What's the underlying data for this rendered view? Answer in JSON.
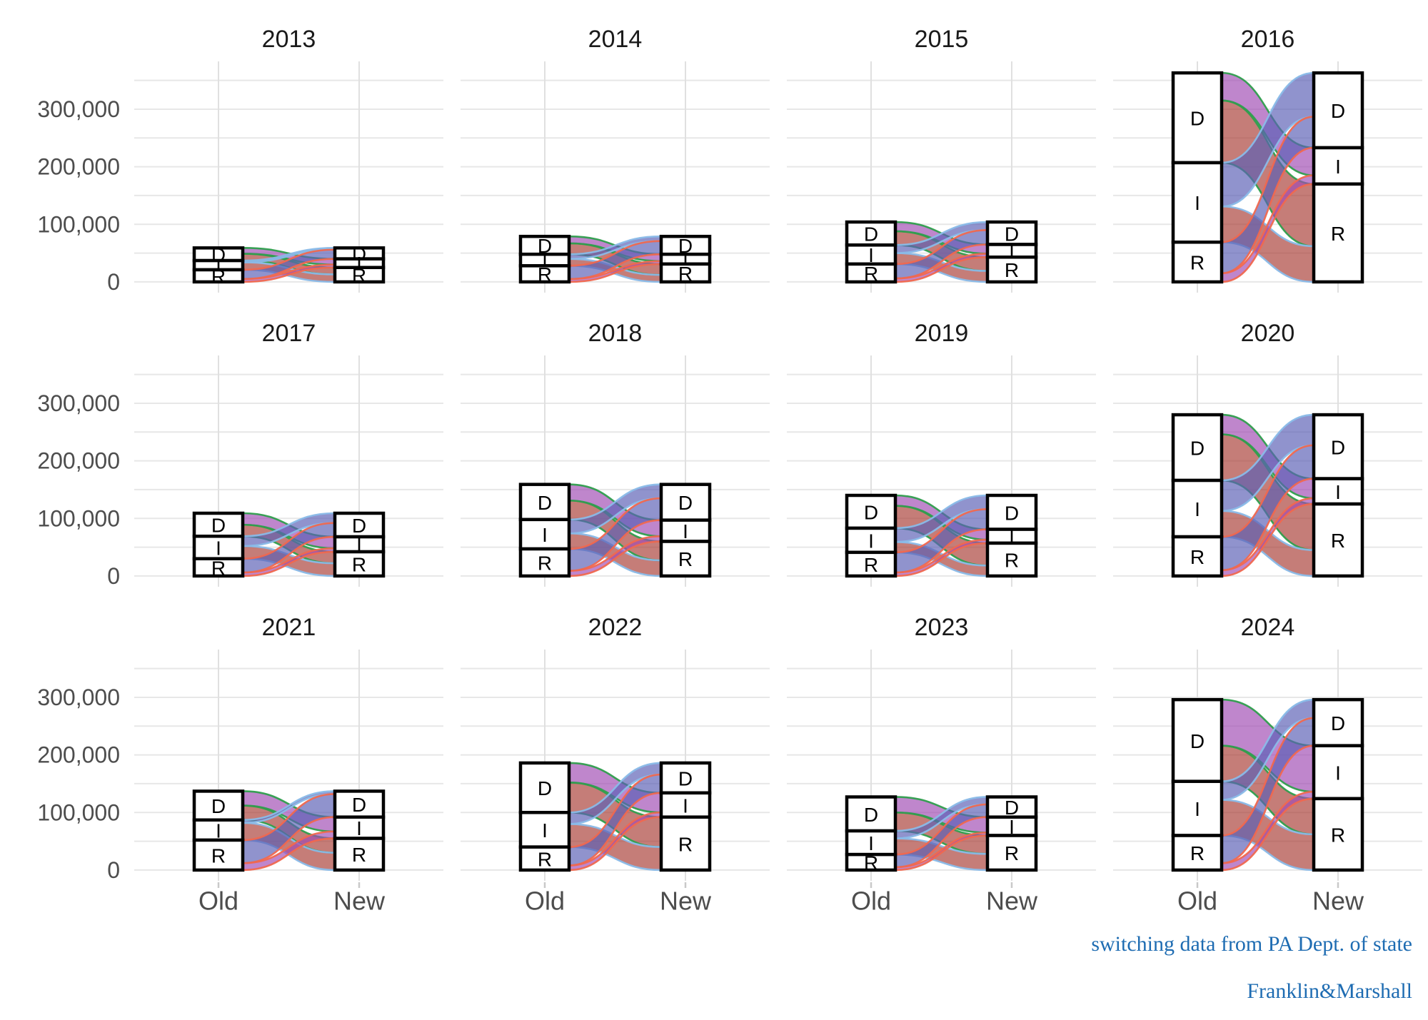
{
  "figure": {
    "caption_line1": "switching data from PA Dept. of state",
    "caption_line2": "Franklin&Marshall",
    "caption_color": "#1e6cb2",
    "background": "#ffffff"
  },
  "axes": {
    "y_tick_values": [
      0,
      100000,
      200000,
      300000
    ],
    "y_tick_labels": [
      "0",
      "100,000",
      "200,000",
      "300,000"
    ],
    "y_minor_step": 50000,
    "y_max_grid": 350000,
    "x_labels": [
      "Old",
      "New"
    ],
    "grid": "on",
    "legend": "none"
  },
  "strata": [
    "D",
    "I",
    "R"
  ],
  "palette": {
    "fill_by_new_party": {
      "D": "#5c60b6",
      "I": "#a14cb4",
      "R": "#a93f38"
    },
    "stroke_by_old_party": {
      "D": "#2f9e4d",
      "I": "#8abbe8",
      "R": "#f0684f"
    },
    "bar_fill": "#ffffff",
    "bar_stroke": "#000000",
    "grid_color": "#e7e7e7",
    "grid_color_vertical": "#e0e0e0",
    "tick_color": "#c9c9c9",
    "label_gray": "#4d4d4d",
    "title_color": "#1a1a1a"
  },
  "chart_data": {
    "type": "alluvial",
    "title": "",
    "xlabel": "",
    "ylabel": "",
    "ylim": [
      -18700,
      383000
    ],
    "facet_years": [
      "2013",
      "2014",
      "2015",
      "2016",
      "2017",
      "2018",
      "2019",
      "2020",
      "2021",
      "2022",
      "2023",
      "2024"
    ],
    "facets": [
      {
        "year": "2013",
        "old_totals": {
          "D": 22000,
          "I": 16000,
          "R": 21000
        },
        "new_totals": {
          "D": 19000,
          "I": 15000,
          "R": 25000
        },
        "flows": [
          {
            "from": "D",
            "to": "I",
            "value": 10000
          },
          {
            "from": "D",
            "to": "R",
            "value": 12000
          },
          {
            "from": "I",
            "to": "D",
            "value": 3000
          },
          {
            "from": "I",
            "to": "R",
            "value": 13000
          },
          {
            "from": "R",
            "to": "D",
            "value": 16000
          },
          {
            "from": "R",
            "to": "I",
            "value": 5000
          }
        ]
      },
      {
        "year": "2014",
        "old_totals": {
          "D": 31000,
          "I": 20000,
          "R": 28000
        },
        "new_totals": {
          "D": 31000,
          "I": 17000,
          "R": 31000
        },
        "flows": [
          {
            "from": "D",
            "to": "I",
            "value": 12000
          },
          {
            "from": "D",
            "to": "R",
            "value": 19000
          },
          {
            "from": "I",
            "to": "D",
            "value": 8000
          },
          {
            "from": "I",
            "to": "R",
            "value": 12000
          },
          {
            "from": "R",
            "to": "D",
            "value": 23000
          },
          {
            "from": "R",
            "to": "I",
            "value": 5000
          }
        ]
      },
      {
        "year": "2015",
        "old_totals": {
          "D": 40000,
          "I": 33000,
          "R": 31000
        },
        "new_totals": {
          "D": 39000,
          "I": 22000,
          "R": 43000
        },
        "flows": [
          {
            "from": "D",
            "to": "I",
            "value": 16000
          },
          {
            "from": "D",
            "to": "R",
            "value": 24000
          },
          {
            "from": "I",
            "to": "D",
            "value": 14000
          },
          {
            "from": "I",
            "to": "R",
            "value": 19000
          },
          {
            "from": "R",
            "to": "D",
            "value": 25000
          },
          {
            "from": "R",
            "to": "I",
            "value": 6000
          }
        ]
      },
      {
        "year": "2016",
        "old_totals": {
          "D": 156000,
          "I": 138000,
          "R": 69000
        },
        "new_totals": {
          "D": 130000,
          "I": 63000,
          "R": 170000
        },
        "flows": [
          {
            "from": "D",
            "to": "I",
            "value": 48000
          },
          {
            "from": "D",
            "to": "R",
            "value": 108000
          },
          {
            "from": "I",
            "to": "D",
            "value": 76000
          },
          {
            "from": "I",
            "to": "R",
            "value": 62000
          },
          {
            "from": "R",
            "to": "D",
            "value": 54000
          },
          {
            "from": "R",
            "to": "I",
            "value": 15000
          }
        ]
      },
      {
        "year": "2017",
        "old_totals": {
          "D": 40000,
          "I": 39000,
          "R": 30000
        },
        "new_totals": {
          "D": 41000,
          "I": 26000,
          "R": 42000
        },
        "flows": [
          {
            "from": "D",
            "to": "I",
            "value": 20000
          },
          {
            "from": "D",
            "to": "R",
            "value": 20000
          },
          {
            "from": "I",
            "to": "D",
            "value": 17000
          },
          {
            "from": "I",
            "to": "R",
            "value": 22000
          },
          {
            "from": "R",
            "to": "D",
            "value": 24000
          },
          {
            "from": "R",
            "to": "I",
            "value": 6000
          }
        ]
      },
      {
        "year": "2018",
        "old_totals": {
          "D": 61000,
          "I": 51000,
          "R": 47000
        },
        "new_totals": {
          "D": 62000,
          "I": 37000,
          "R": 60000
        },
        "flows": [
          {
            "from": "D",
            "to": "I",
            "value": 28000
          },
          {
            "from": "D",
            "to": "R",
            "value": 33000
          },
          {
            "from": "I",
            "to": "D",
            "value": 24000
          },
          {
            "from": "I",
            "to": "R",
            "value": 27000
          },
          {
            "from": "R",
            "to": "D",
            "value": 38000
          },
          {
            "from": "R",
            "to": "I",
            "value": 9000
          }
        ]
      },
      {
        "year": "2019",
        "old_totals": {
          "D": 57000,
          "I": 42000,
          "R": 41000
        },
        "new_totals": {
          "D": 59000,
          "I": 24000,
          "R": 57000
        },
        "flows": [
          {
            "from": "D",
            "to": "I",
            "value": 18000
          },
          {
            "from": "D",
            "to": "R",
            "value": 39000
          },
          {
            "from": "I",
            "to": "D",
            "value": 24000
          },
          {
            "from": "I",
            "to": "R",
            "value": 18000
          },
          {
            "from": "R",
            "to": "D",
            "value": 35000
          },
          {
            "from": "R",
            "to": "I",
            "value": 6000
          }
        ]
      },
      {
        "year": "2020",
        "old_totals": {
          "D": 114000,
          "I": 98000,
          "R": 68000
        },
        "new_totals": {
          "D": 111000,
          "I": 44000,
          "R": 125000
        },
        "flows": [
          {
            "from": "D",
            "to": "I",
            "value": 34000
          },
          {
            "from": "D",
            "to": "R",
            "value": 80000
          },
          {
            "from": "I",
            "to": "D",
            "value": 53000
          },
          {
            "from": "I",
            "to": "R",
            "value": 45000
          },
          {
            "from": "R",
            "to": "D",
            "value": 58000
          },
          {
            "from": "R",
            "to": "I",
            "value": 10000
          }
        ]
      },
      {
        "year": "2021",
        "old_totals": {
          "D": 50000,
          "I": 35000,
          "R": 52000
        },
        "new_totals": {
          "D": 45000,
          "I": 37000,
          "R": 55000
        },
        "flows": [
          {
            "from": "D",
            "to": "I",
            "value": 25000
          },
          {
            "from": "D",
            "to": "R",
            "value": 25000
          },
          {
            "from": "I",
            "to": "D",
            "value": 5000
          },
          {
            "from": "I",
            "to": "R",
            "value": 30000
          },
          {
            "from": "R",
            "to": "D",
            "value": 40000
          },
          {
            "from": "R",
            "to": "I",
            "value": 12000
          }
        ]
      },
      {
        "year": "2022",
        "old_totals": {
          "D": 86000,
          "I": 60000,
          "R": 40000
        },
        "new_totals": {
          "D": 52000,
          "I": 42000,
          "R": 92000
        },
        "flows": [
          {
            "from": "D",
            "to": "I",
            "value": 34000
          },
          {
            "from": "D",
            "to": "R",
            "value": 52000
          },
          {
            "from": "I",
            "to": "D",
            "value": 20000
          },
          {
            "from": "I",
            "to": "R",
            "value": 40000
          },
          {
            "from": "R",
            "to": "D",
            "value": 32000
          },
          {
            "from": "R",
            "to": "I",
            "value": 8000
          }
        ]
      },
      {
        "year": "2023",
        "old_totals": {
          "D": 59000,
          "I": 41000,
          "R": 27000
        },
        "new_totals": {
          "D": 35000,
          "I": 32000,
          "R": 60000
        },
        "flows": [
          {
            "from": "D",
            "to": "I",
            "value": 27000
          },
          {
            "from": "D",
            "to": "R",
            "value": 32000
          },
          {
            "from": "I",
            "to": "D",
            "value": 13000
          },
          {
            "from": "I",
            "to": "R",
            "value": 28000
          },
          {
            "from": "R",
            "to": "D",
            "value": 22000
          },
          {
            "from": "R",
            "to": "I",
            "value": 5000
          }
        ]
      },
      {
        "year": "2024",
        "old_totals": {
          "D": 142000,
          "I": 94000,
          "R": 60000
        },
        "new_totals": {
          "D": 80000,
          "I": 92000,
          "R": 124000
        },
        "flows": [
          {
            "from": "D",
            "to": "I",
            "value": 80000
          },
          {
            "from": "D",
            "to": "R",
            "value": 62000
          },
          {
            "from": "I",
            "to": "D",
            "value": 32000
          },
          {
            "from": "I",
            "to": "R",
            "value": 62000
          },
          {
            "from": "R",
            "to": "D",
            "value": 48000
          },
          {
            "from": "R",
            "to": "I",
            "value": 12000
          }
        ]
      }
    ]
  }
}
